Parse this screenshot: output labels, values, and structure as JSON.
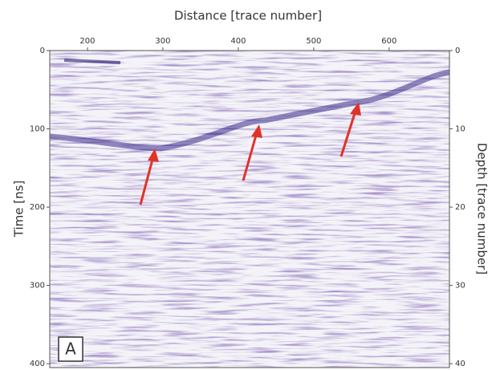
{
  "chart_data": {
    "type": "radargram",
    "x_label": "Distance [trace number]",
    "y_label": "Time [ns]",
    "y2_label": "Depth [trace number]",
    "panel_label": "A",
    "xlim": [
      150,
      680
    ],
    "xticks": [
      200,
      300,
      400,
      500,
      600
    ],
    "ylim": [
      0,
      405
    ],
    "yticks": [
      0,
      100,
      200,
      300,
      400
    ],
    "y2lim": [
      0,
      40.5
    ],
    "y2ticks": [
      0,
      10,
      20,
      30,
      40
    ]
  }
}
